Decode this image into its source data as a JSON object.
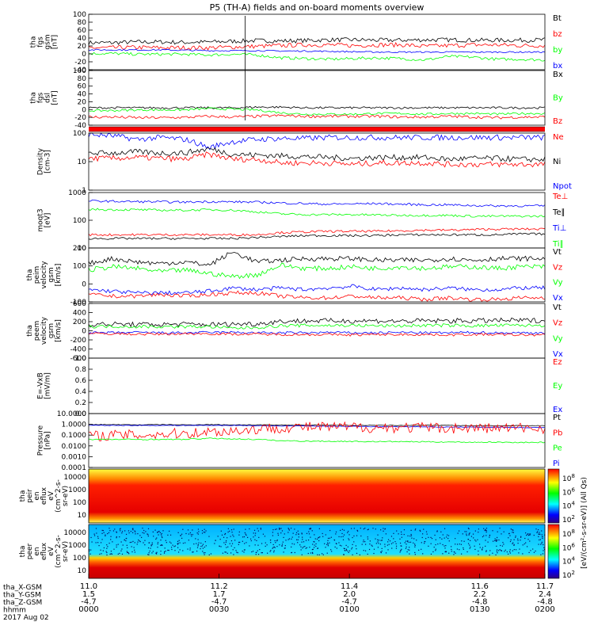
{
  "title": "P5 (TH-A) fields and on-board moments overview",
  "colors": {
    "black": "#000000",
    "red": "#ff0000",
    "green": "#00ff00",
    "blue": "#0000ff"
  },
  "chart_data": {
    "type": "line",
    "x_ticks": [
      11.0,
      11.2,
      11.4,
      11.6,
      11.7
    ],
    "x_tick_labels": [
      "11.0",
      "11.2",
      "11.4",
      "11.6",
      "11.7"
    ],
    "footer": {
      "row_labels": [
        "tha_X-GSM",
        "tha_Y-GSM",
        "tha_Z-GSM",
        "hhmm",
        "2017 Aug 02"
      ],
      "columns": [
        [
          "1.5",
          "-4.7",
          "0000"
        ],
        [
          "1.7",
          "-4.7",
          "0030"
        ],
        [
          "2.0",
          "-4.7",
          "0100"
        ],
        [
          "2.2",
          "-4.8",
          "0130"
        ],
        [
          "2.4",
          "-4.8",
          "0200"
        ]
      ]
    },
    "panels": [
      {
        "ylabel": [
          "tha",
          "fgs",
          "gsm",
          "[nT]"
        ],
        "yticks": [
          "100",
          "80",
          "60",
          "40",
          "20",
          "0",
          "-20",
          "-40"
        ],
        "legend": [
          {
            "label": "Bt",
            "color": "black"
          },
          {
            "label": "bz",
            "color": "red"
          },
          {
            "label": "by",
            "color": "green"
          },
          {
            "label": "bx",
            "color": "blue"
          }
        ],
        "series": [
          {
            "color": "black",
            "base": [
              28,
              28,
              30,
              30,
              29,
              30,
              32,
              34,
              33,
              34,
              36,
              36,
              35,
              35,
              36,
              36,
              35,
              35,
              35,
              36
            ],
            "noise": 6
          },
          {
            "color": "red",
            "base": [
              14,
              14,
              15,
              14,
              14,
              14,
              16,
              18,
              20,
              22,
              22,
              20,
              22,
              22,
              18,
              20,
              22,
              22,
              20,
              20
            ],
            "noise": 6
          },
          {
            "color": "green",
            "base": [
              -2,
              -2,
              -4,
              -4,
              -4,
              -6,
              -4,
              -6,
              -14,
              -16,
              -18,
              -16,
              -14,
              -16,
              -20,
              -10,
              -12,
              -18,
              -18,
              -20
            ],
            "noise": 4
          },
          {
            "color": "blue",
            "base": [
              8,
              8,
              8,
              8,
              7,
              6,
              6,
              6,
              5,
              5,
              4,
              3,
              2,
              2,
              2,
              2,
              2,
              2,
              2,
              2
            ],
            "noise": 2
          }
        ]
      },
      {
        "ylabel": [
          "tha",
          "fgs",
          "dsl",
          "[nT]"
        ],
        "yticks": [
          "100",
          "80",
          "60",
          "40",
          "20",
          "0",
          "-20",
          "-40"
        ],
        "legend": [
          {
            "label": "Bx",
            "color": "black"
          },
          {
            "label": "By",
            "color": "green"
          },
          {
            "label": "Bz",
            "color": "red"
          }
        ],
        "series": [
          {
            "color": "black",
            "base": [
              2,
              2,
              2,
              2,
              2,
              2,
              2,
              4,
              4,
              2,
              2,
              2,
              2,
              2,
              2,
              2,
              2,
              2,
              2,
              2
            ],
            "noise": 3
          },
          {
            "color": "green",
            "base": [
              -6,
              -6,
              -4,
              -4,
              -4,
              0,
              -2,
              -4,
              -12,
              -16,
              -16,
              -16,
              -14,
              -14,
              -16,
              -14,
              -14,
              -16,
              -14,
              -14
            ],
            "noise": 3
          },
          {
            "color": "red",
            "base": [
              -24,
              -24,
              -26,
              -26,
              -25,
              -22,
              -24,
              -22,
              -20,
              -22,
              -22,
              -22,
              -22,
              -24,
              -24,
              -22,
              -24,
              -26,
              -24,
              -24
            ],
            "noise": 4
          }
        ]
      },
      {
        "ylabel": [
          "Density",
          "[cm-3]"
        ],
        "yticks": [
          "100",
          "10",
          "1"
        ],
        "legend": [
          {
            "label": "Ne",
            "color": "red"
          },
          {
            "label": "Ni",
            "color": "black"
          },
          {
            "label": "Npot",
            "color": "blue"
          }
        ],
        "series": [
          {
            "color": "blue",
            "base": [
              90,
              80,
              60,
              70,
              60,
              30,
              50,
              60,
              65,
              65,
              70,
              70,
              70,
              70,
              70,
              70,
              70,
              70,
              70,
              70
            ],
            "noise": 0.1
          },
          {
            "color": "black",
            "base": [
              20,
              20,
              22,
              20,
              20,
              28,
              18,
              17,
              16,
              15,
              14,
              13,
              14,
              14,
              14,
              12,
              13,
              13,
              12,
              12
            ],
            "noise": 0.1
          },
          {
            "color": "red",
            "base": [
              13,
              13,
              14,
              13,
              12,
              18,
              12,
              12,
              9,
              9,
              9,
              8,
              9,
              9,
              9,
              8,
              8,
              8,
              8,
              8
            ],
            "noise": 0.1
          }
        ]
      },
      {
        "ylabel": [
          "moqt3",
          "[eV]"
        ],
        "yticks": [
          "1000",
          "100",
          "10"
        ],
        "legend": [
          {
            "label": "Te⊥",
            "color": "red"
          },
          {
            "label": "Te∥",
            "color": "black"
          },
          {
            "label": "Ti⊥",
            "color": "blue"
          },
          {
            "label": "Ti∥",
            "color": "green"
          }
        ],
        "series": [
          {
            "color": "blue",
            "base": [
              500,
              480,
              470,
              460,
              450,
              470,
              460,
              450,
              420,
              400,
              380,
              390,
              400,
              380,
              360,
              360,
              340,
              330,
              330,
              330
            ],
            "noise": 0.04
          },
          {
            "color": "green",
            "base": [
              250,
              240,
              240,
              230,
              230,
              240,
              230,
              200,
              170,
              160,
              160,
              160,
              155,
              150,
              150,
              150,
              140,
              140,
              140,
              140
            ],
            "noise": 0.04
          },
          {
            "color": "red",
            "base": [
              30,
              30,
              30,
              30,
              30,
              30,
              30,
              30,
              36,
              38,
              40,
              40,
              40,
              42,
              44,
              44,
              46,
              48,
              48,
              48
            ],
            "noise": 0.04
          },
          {
            "color": "black",
            "base": [
              22,
              22,
              22,
              22,
              22,
              22,
              22,
              24,
              26,
              28,
              28,
              28,
              28,
              30,
              30,
              30,
              30,
              30,
              32,
              32
            ],
            "noise": 0.04
          }
        ]
      },
      {
        "ylabel": [
          "tha",
          "peim",
          "velocity",
          "gsm",
          "[km/s]"
        ],
        "yticks": [
          "200",
          "100",
          "0",
          "-100"
        ],
        "legend": [
          {
            "label": "Vt",
            "color": "black"
          },
          {
            "label": "Vz",
            "color": "red"
          },
          {
            "label": "Vy",
            "color": "green"
          },
          {
            "label": "Vx",
            "color": "blue"
          }
        ],
        "series": [
          {
            "color": "black",
            "base": [
              120,
              150,
              130,
              120,
              130,
              110,
              190,
              130,
              140,
              150,
              150,
              150,
              140,
              140,
              140,
              150,
              140,
              150,
              150,
              150
            ],
            "noise": 15
          },
          {
            "color": "green",
            "base": [
              80,
              100,
              90,
              70,
              80,
              60,
              40,
              50,
              110,
              90,
              90,
              100,
              90,
              100,
              90,
              100,
              100,
              90,
              100,
              100
            ],
            "noise": 15
          },
          {
            "color": "blue",
            "base": [
              -40,
              -50,
              -60,
              -60,
              -60,
              -50,
              -30,
              -40,
              -30,
              -40,
              -30,
              -20,
              -40,
              -30,
              -40,
              -30,
              -40,
              -40,
              -30,
              -30
            ],
            "noise": 12
          },
          {
            "color": "red",
            "base": [
              -70,
              -80,
              -80,
              -70,
              -80,
              -70,
              -60,
              -60,
              -80,
              -90,
              -90,
              -80,
              -90,
              -90,
              -100,
              -90,
              -100,
              -100,
              -90,
              -90
            ],
            "noise": 12
          }
        ]
      },
      {
        "ylabel": [
          "tha",
          "peem",
          "velocity",
          "gsm",
          "[km/s]"
        ],
        "yticks": [
          "600",
          "400",
          "200",
          "0",
          "-200",
          "-400",
          "-600"
        ],
        "legend": [
          {
            "label": "Vt",
            "color": "black"
          },
          {
            "label": "Vz",
            "color": "red"
          },
          {
            "label": "Vy",
            "color": "green"
          },
          {
            "label": "Vx",
            "color": "blue"
          }
        ],
        "series": [
          {
            "color": "black",
            "base": [
              150,
              160,
              150,
              150,
              160,
              150,
              160,
              170,
              230,
              240,
              240,
              240,
              240,
              230,
              240,
              240,
              240,
              250,
              250,
              250
            ],
            "noise": 60
          },
          {
            "color": "green",
            "base": [
              100,
              110,
              100,
              100,
              100,
              100,
              60,
              80,
              120,
              130,
              130,
              130,
              120,
              120,
              130,
              130,
              120,
              130,
              130,
              130
            ],
            "noise": 40
          },
          {
            "color": "blue",
            "base": [
              -50,
              -50,
              -40,
              -50,
              -50,
              -40,
              -40,
              -50,
              -50,
              -50,
              -40,
              -50,
              -50,
              -40,
              -50,
              -50,
              -40,
              -50,
              -50,
              -50
            ],
            "noise": 30
          },
          {
            "color": "red",
            "base": [
              -70,
              -70,
              -80,
              -80,
              -70,
              -70,
              -80,
              -80,
              -90,
              -90,
              -90,
              -100,
              -90,
              -90,
              -90,
              -100,
              -90,
              -90,
              -100,
              -100
            ],
            "noise": 30
          }
        ]
      },
      {
        "ylabel": [
          "E=-VxB",
          "[mV/m]"
        ],
        "yticks": [
          "1.0",
          "0.8",
          "0.6",
          "0.4",
          "0.2",
          "0.0"
        ],
        "legend": [
          {
            "label": "Ez",
            "color": "red"
          },
          {
            "label": "Ey",
            "color": "green"
          },
          {
            "label": "Ex",
            "color": "blue"
          }
        ],
        "series": []
      },
      {
        "ylabel": [
          "Pressure",
          "[nPa]"
        ],
        "yticks": [
          "10.0000",
          "1.0000",
          "0.1000",
          "0.0100",
          "0.0010",
          "0.0001"
        ],
        "legend": [
          {
            "label": "Pt",
            "color": "black"
          },
          {
            "label": "Pb",
            "color": "red"
          },
          {
            "label": "Pe",
            "color": "green"
          },
          {
            "label": "Pi",
            "color": "blue"
          }
        ],
        "series": [
          {
            "color": "black",
            "base": [
              0.95,
              0.95,
              0.9,
              0.95,
              0.9,
              0.95,
              0.9,
              0.9,
              0.85,
              0.85,
              0.85,
              0.8,
              0.8,
              0.8,
              0.8,
              0.8,
              0.75,
              0.75,
              0.75,
              0.75
            ],
            "noise": 0.03
          },
          {
            "color": "blue",
            "base": [
              0.8,
              0.8,
              0.8,
              0.8,
              0.8,
              0.8,
              0.8,
              0.75,
              0.7,
              0.7,
              0.65,
              0.65,
              0.6,
              0.6,
              0.6,
              0.55,
              0.55,
              0.55,
              0.5,
              0.5
            ],
            "noise": 0.03
          },
          {
            "color": "red",
            "base": [
              0.08,
              0.1,
              0.1,
              0.12,
              0.15,
              0.2,
              0.25,
              0.35,
              0.5,
              0.55,
              0.55,
              0.55,
              0.5,
              0.5,
              0.5,
              0.45,
              0.45,
              0.45,
              0.45,
              0.45
            ],
            "noise": 0.5
          },
          {
            "color": "green",
            "base": [
              0.04,
              0.04,
              0.04,
              0.04,
              0.04,
              0.05,
              0.045,
              0.04,
              0.03,
              0.028,
              0.027,
              0.026,
              0.025,
              0.025,
              0.024,
              0.023,
              0.022,
              0.022,
              0.021,
              0.021
            ],
            "noise": 0.05
          }
        ]
      },
      {
        "ylabel": [
          "tha",
          "peir",
          "en",
          "eflux",
          "eV",
          "(cm^2-s-",
          "sr-eV)"
        ],
        "yticks": [
          "10000",
          "1000",
          "100",
          "10"
        ],
        "legend": [],
        "series": []
      },
      {
        "ylabel": [
          "tha",
          "peer",
          "en",
          "eflux",
          "eV",
          "(cm^2-s-",
          "sr-eV)"
        ],
        "yticks": [
          "10000",
          "1000",
          "100",
          "10"
        ],
        "legend": [],
        "series": []
      }
    ],
    "colorbars": [
      {
        "ticks": [
          "10^8",
          "10^6",
          "10^4",
          "10^2"
        ],
        "label": "[eV/(cm²-s-sr-eV)] (All Qs)"
      },
      {
        "ticks": [
          "10^8",
          "10^6",
          "10^4",
          "10^2"
        ],
        "label": "[eV/(cm²-s-sr-eV)] (All Qs)"
      }
    ]
  }
}
